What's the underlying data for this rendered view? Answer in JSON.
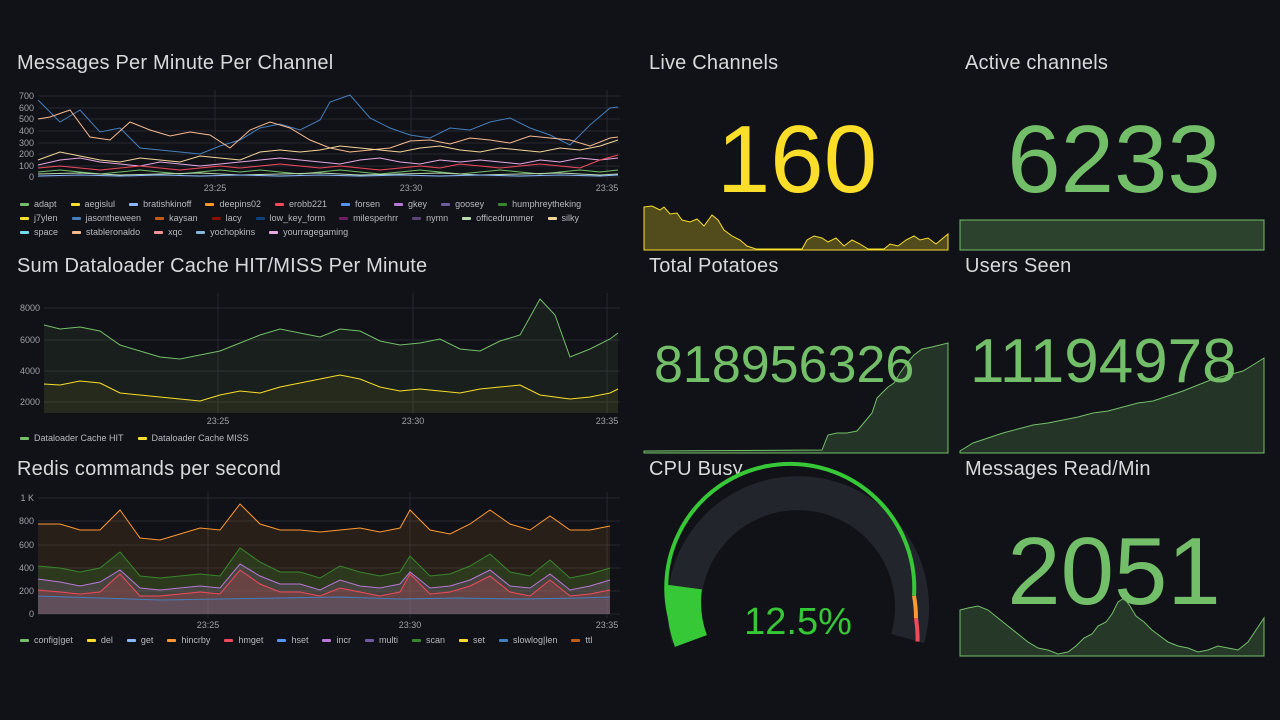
{
  "panels": {
    "messages_per_minute": {
      "title": "Messages Per Minute Per Channel",
      "y_ticks": [
        "700",
        "600",
        "500",
        "400",
        "300",
        "200",
        "100",
        "0"
      ],
      "x_ticks": [
        "23:25",
        "23:30",
        "23:35"
      ],
      "legend": [
        {
          "name": "adapt",
          "color": "#73bf69"
        },
        {
          "name": "aegislul",
          "color": "#fade2a"
        },
        {
          "name": "bratishkinoff",
          "color": "#8ab8ff"
        },
        {
          "name": "deepins02",
          "color": "#ff9830"
        },
        {
          "name": "erobb221",
          "color": "#f2495c"
        },
        {
          "name": "forsen",
          "color": "#5794f2"
        },
        {
          "name": "gkey",
          "color": "#b877d9"
        },
        {
          "name": "goosey",
          "color": "#705da0"
        },
        {
          "name": "humphreytheking",
          "color": "#37872d"
        },
        {
          "name": "j7ylen",
          "color": "#fade2a"
        },
        {
          "name": "jasontheween",
          "color": "#447ebc"
        },
        {
          "name": "kaysan",
          "color": "#c15c17"
        },
        {
          "name": "lacy",
          "color": "#890f02"
        },
        {
          "name": "low_key_form",
          "color": "#0a437c"
        },
        {
          "name": "milesperhrr",
          "color": "#6d1f62"
        },
        {
          "name": "nymn",
          "color": "#584477"
        },
        {
          "name": "officedrummer",
          "color": "#b7dbab"
        },
        {
          "name": "silky",
          "color": "#f4d598"
        },
        {
          "name": "space",
          "color": "#70dbed"
        },
        {
          "name": "stableronaldo",
          "color": "#f9ba8f"
        },
        {
          "name": "xqc",
          "color": "#f29191"
        },
        {
          "name": "yochopkins",
          "color": "#82b5d8"
        },
        {
          "name": "yourragegaming",
          "color": "#e5a8e2"
        }
      ]
    },
    "dataloader": {
      "title": "Sum Dataloader Cache HIT/MISS Per Minute",
      "y_ticks": [
        "8000",
        "6000",
        "4000",
        "2000"
      ],
      "x_ticks": [
        "23:25",
        "23:30",
        "23:35"
      ],
      "legend": [
        {
          "name": "Dataloader Cache HIT",
          "color": "#73bf69"
        },
        {
          "name": "Dataloader Cache MISS",
          "color": "#fade2a"
        }
      ]
    },
    "redis": {
      "title": "Redis commands per second",
      "y_ticks": [
        "1 K",
        "800",
        "600",
        "400",
        "200",
        "0"
      ],
      "x_ticks": [
        "23:25",
        "23:30",
        "23:35"
      ],
      "legend": [
        {
          "name": "config|get",
          "color": "#73bf69"
        },
        {
          "name": "del",
          "color": "#fade2a"
        },
        {
          "name": "get",
          "color": "#8ab8ff"
        },
        {
          "name": "hincrby",
          "color": "#ff9830"
        },
        {
          "name": "hmget",
          "color": "#f2495c"
        },
        {
          "name": "hset",
          "color": "#5794f2"
        },
        {
          "name": "incr",
          "color": "#b877d9"
        },
        {
          "name": "multi",
          "color": "#705da0"
        },
        {
          "name": "scan",
          "color": "#37872d"
        },
        {
          "name": "set",
          "color": "#fade2a"
        },
        {
          "name": "slowlog|len",
          "color": "#447ebc"
        },
        {
          "name": "ttl",
          "color": "#c15c17"
        }
      ]
    },
    "live_channels": {
      "title": "Live Channels",
      "value": "160",
      "color": "#fade2a"
    },
    "active_channels": {
      "title": "Active channels",
      "value": "6233",
      "color": "#73bf69"
    },
    "total_potatoes": {
      "title": "Total Potatoes",
      "value": "818956326",
      "color": "#73bf69"
    },
    "users_seen": {
      "title": "Users Seen",
      "value": "11194978",
      "color": "#73bf69"
    },
    "cpu_busy": {
      "title": "CPU Busy",
      "value": "12.5%",
      "percent": 12.5,
      "color": "#37c837"
    },
    "messages_read": {
      "title": "Messages Read/Min",
      "value": "2051",
      "color": "#73bf69"
    }
  }
}
